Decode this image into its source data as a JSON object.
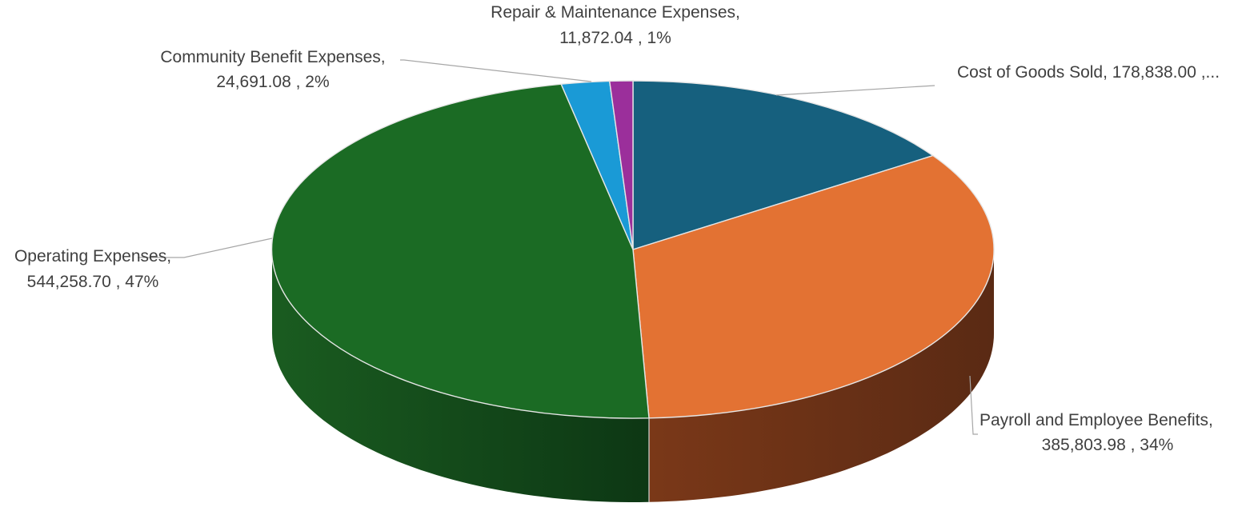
{
  "chart_data": {
    "type": "pie",
    "style": "3d",
    "title": "",
    "slices": [
      {
        "label": "Cost of Goods Sold,",
        "value": 178838.0,
        "value_text": "178,838.00",
        "percent_text": "15%",
        "color": "#16607E"
      },
      {
        "label": "Payroll and Employee Benefits,",
        "value": 385803.98,
        "value_text": "385,803.98",
        "percent_text": "34%",
        "color": "#E37233"
      },
      {
        "label": "Operating Expenses,",
        "value": 544258.7,
        "value_text": "544,258.70",
        "percent_text": "47%",
        "color": "#1B6B24"
      },
      {
        "label": "Community Benefit Expenses,",
        "value": 24691.08,
        "value_text": "24,691.08",
        "percent_text": "2%",
        "color": "#1A9AD6"
      },
      {
        "label": "Repair & Maintenance Expenses,",
        "value": 11872.04,
        "value_text": "11,872.04",
        "percent_text": "1%",
        "color": "#9B2F9B"
      }
    ],
    "labels": [
      {
        "line1": "Cost of Goods Sold,  178,838.00 ,..."
      },
      {
        "line1": "Payroll and Employee Benefits,",
        "line2": "385,803.98 , 34%"
      },
      {
        "line1": "Operating Expenses,",
        "line2": "544,258.70 , 47%"
      },
      {
        "line1": "Community Benefit Expenses,",
        "line2": "24,691.08 , 2%"
      },
      {
        "line1": "Repair & Maintenance Expenses,",
        "line2": "11,872.04 , 1%"
      }
    ]
  }
}
